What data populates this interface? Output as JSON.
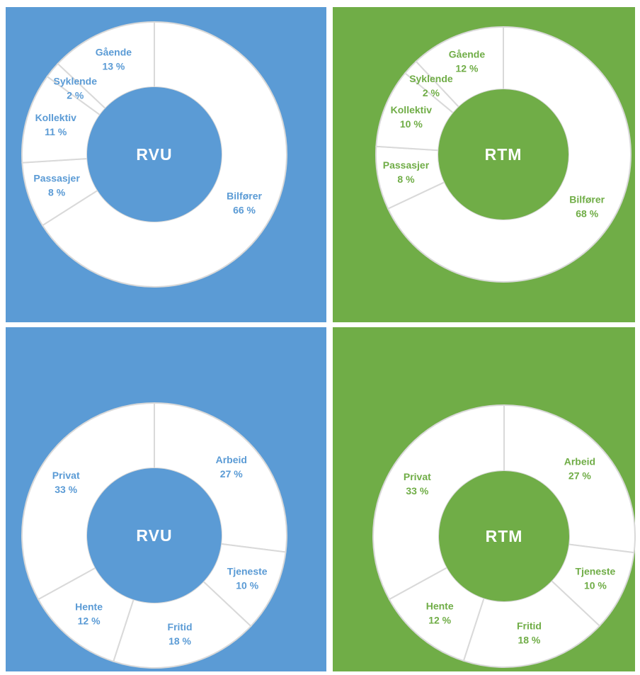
{
  "chart_data": [
    {
      "type": "donut",
      "title": "RVU",
      "color": "#5b9bd5",
      "categories": [
        "Bilfører",
        "Passasjer",
        "Kollektiv",
        "Syklende",
        "Gående"
      ],
      "values": [
        66,
        8,
        11,
        2,
        13
      ],
      "value_labels": [
        "66 %",
        "8 %",
        "11 %",
        "2 %",
        "13 %"
      ]
    },
    {
      "type": "donut",
      "title": "RTM",
      "color": "#70ad47",
      "categories": [
        "Bilfører",
        "Passasjer",
        "Kollektiv",
        "Syklende",
        "Gående"
      ],
      "values": [
        68,
        8,
        10,
        2,
        12
      ],
      "value_labels": [
        "68 %",
        "8 %",
        "10 %",
        "2 %",
        "12 %"
      ]
    },
    {
      "type": "donut",
      "title": "RVU",
      "color": "#5b9bd5",
      "categories": [
        "Arbeid",
        "Tjeneste",
        "Fritid",
        "Hente",
        "Privat"
      ],
      "values": [
        27,
        10,
        18,
        12,
        33
      ],
      "value_labels": [
        "27 %",
        "10 %",
        "18 %",
        "12 %",
        "33 %"
      ]
    },
    {
      "type": "donut",
      "title": "RTM",
      "color": "#70ad47",
      "categories": [
        "Arbeid",
        "Tjeneste",
        "Fritid",
        "Hente",
        "Privat"
      ],
      "values": [
        27,
        10,
        18,
        12,
        33
      ],
      "value_labels": [
        "27 %",
        "10 %",
        "18 %",
        "12 %",
        "33 %"
      ]
    }
  ]
}
